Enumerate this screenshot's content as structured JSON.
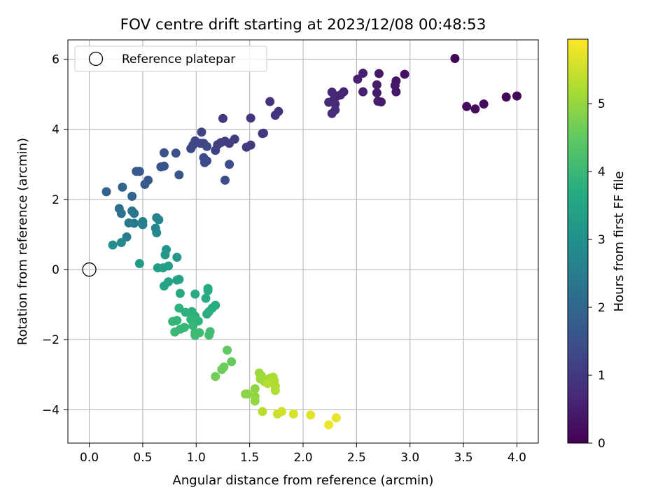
{
  "chart_data": {
    "type": "scatter",
    "title": "FOV centre drift starting at 2023/12/08 00:48:53",
    "xlabel": "Angular distance from reference (arcmin)",
    "ylabel": "Rotation from reference (arcmin)",
    "xlim": [
      -0.2,
      4.2
    ],
    "ylim": [
      -4.95,
      6.55
    ],
    "xticks": [
      0.0,
      0.5,
      1.0,
      1.5,
      2.0,
      2.5,
      3.0,
      3.5,
      4.0
    ],
    "xtick_labels": [
      "0.0",
      "0.5",
      "1.0",
      "1.5",
      "2.0",
      "2.5",
      "3.0",
      "3.5",
      "4.0"
    ],
    "yticks": [
      -4,
      -2,
      0,
      2,
      4,
      6
    ],
    "ytick_labels": [
      "−4",
      "−2",
      "0",
      "2",
      "4",
      "6"
    ],
    "grid": true,
    "legend": {
      "position": "top-left",
      "entries": [
        "Reference platepar"
      ]
    },
    "reference_point": {
      "x": 0.0,
      "y": 0.0
    },
    "colorbar": {
      "label": "Hours from first FF file",
      "colormap": "viridis",
      "range": [
        0,
        5.95
      ],
      "ticks": [
        0,
        1,
        2,
        3,
        4,
        5
      ],
      "tick_labels": [
        "0",
        "1",
        "2",
        "3",
        "4",
        "5"
      ]
    },
    "series": [
      {
        "color_by": "hours",
        "points": [
          [
            3.42,
            6.02,
            0.05
          ],
          [
            4.0,
            4.95,
            0.1
          ],
          [
            3.9,
            4.92,
            0.12
          ],
          [
            3.69,
            4.72,
            0.15
          ],
          [
            3.61,
            4.58,
            0.18
          ],
          [
            3.53,
            4.65,
            0.2
          ],
          [
            2.95,
            5.57,
            0.3
          ],
          [
            2.87,
            5.38,
            0.33
          ],
          [
            2.86,
            5.25,
            0.35
          ],
          [
            2.87,
            5.07,
            0.38
          ],
          [
            2.71,
            5.59,
            0.4
          ],
          [
            2.69,
            5.27,
            0.42
          ],
          [
            2.69,
            5.04,
            0.44
          ],
          [
            2.7,
            4.8,
            0.47
          ],
          [
            2.73,
            4.78,
            0.49
          ],
          [
            2.56,
            5.6,
            0.52
          ],
          [
            2.51,
            5.43,
            0.54
          ],
          [
            2.56,
            5.07,
            0.56
          ],
          [
            2.38,
            5.07,
            0.6
          ],
          [
            2.32,
            4.95,
            0.62
          ],
          [
            2.35,
            4.98,
            0.64
          ],
          [
            2.27,
            5.06,
            0.66
          ],
          [
            2.29,
            4.86,
            0.68
          ],
          [
            2.24,
            4.77,
            0.7
          ],
          [
            2.3,
            4.72,
            0.72
          ],
          [
            2.3,
            4.55,
            0.74
          ],
          [
            2.27,
            4.45,
            0.76
          ],
          [
            1.69,
            4.79,
            0.85
          ],
          [
            1.77,
            4.51,
            0.88
          ],
          [
            1.74,
            4.4,
            0.9
          ],
          [
            1.51,
            4.32,
            0.93
          ],
          [
            1.63,
            3.89,
            0.96
          ],
          [
            1.62,
            3.88,
            0.98
          ],
          [
            1.25,
            4.31,
            1.0
          ],
          [
            1.51,
            3.55,
            1.02
          ],
          [
            1.47,
            3.49,
            1.04
          ],
          [
            1.36,
            3.72,
            1.06
          ],
          [
            1.31,
            3.6,
            1.08
          ],
          [
            1.27,
            3.66,
            1.1
          ],
          [
            1.23,
            3.62,
            1.12
          ],
          [
            1.2,
            3.56,
            1.14
          ],
          [
            1.18,
            3.4,
            1.16
          ],
          [
            1.05,
            3.92,
            1.2
          ],
          [
            1.04,
            3.6,
            1.22
          ],
          [
            1.07,
            3.6,
            1.24
          ],
          [
            0.99,
            3.67,
            1.26
          ],
          [
            0.97,
            3.55,
            1.28
          ],
          [
            0.95,
            3.45,
            1.3
          ],
          [
            1.1,
            3.51,
            1.32
          ],
          [
            1.07,
            3.19,
            1.34
          ],
          [
            1.08,
            3.05,
            1.36
          ],
          [
            1.1,
            3.1,
            1.38
          ],
          [
            1.31,
            3.0,
            1.4
          ],
          [
            1.27,
            2.55,
            1.43
          ],
          [
            0.81,
            3.32,
            1.5
          ],
          [
            0.7,
            3.33,
            1.53
          ],
          [
            0.7,
            2.95,
            1.56
          ],
          [
            0.67,
            2.93,
            1.58
          ],
          [
            0.84,
            2.7,
            1.6
          ],
          [
            0.55,
            2.55,
            1.65
          ],
          [
            0.52,
            2.43,
            1.68
          ],
          [
            0.44,
            2.8,
            1.7
          ],
          [
            0.47,
            2.8,
            1.72
          ],
          [
            0.16,
            2.22,
            1.9
          ],
          [
            0.31,
            2.35,
            1.92
          ],
          [
            0.4,
            2.09,
            1.95
          ],
          [
            0.28,
            1.74,
            2.2
          ],
          [
            0.3,
            1.6,
            2.25
          ],
          [
            0.4,
            1.67,
            2.3
          ],
          [
            0.42,
            1.6,
            2.35
          ],
          [
            0.37,
            1.33,
            2.4
          ],
          [
            0.42,
            1.32,
            2.45
          ],
          [
            0.35,
            0.93,
            2.5
          ],
          [
            0.5,
            1.37,
            2.55
          ],
          [
            0.5,
            1.28,
            2.6
          ],
          [
            0.63,
            1.48,
            2.65
          ],
          [
            0.65,
            1.42,
            2.7
          ],
          [
            0.62,
            1.18,
            2.75
          ],
          [
            0.63,
            1.05,
            2.8
          ],
          [
            0.3,
            0.77,
            2.85
          ],
          [
            0.22,
            0.7,
            2.9
          ],
          [
            0.72,
            0.57,
            3.1
          ],
          [
            0.71,
            0.42,
            3.15
          ],
          [
            0.82,
            0.35,
            3.2
          ],
          [
            0.47,
            0.17,
            3.25
          ],
          [
            0.64,
            0.05,
            3.3
          ],
          [
            0.69,
            0.05,
            3.32
          ],
          [
            0.74,
            0.1,
            3.35
          ],
          [
            0.82,
            -0.3,
            3.4
          ],
          [
            0.84,
            -0.28,
            3.42
          ],
          [
            0.74,
            -0.35,
            3.45
          ],
          [
            0.7,
            -0.47,
            3.5
          ],
          [
            0.85,
            -0.68,
            3.6
          ],
          [
            1.11,
            -0.54,
            3.62
          ],
          [
            1.11,
            -0.6,
            3.64
          ],
          [
            1.09,
            -0.82,
            3.66
          ],
          [
            0.99,
            -0.7,
            3.68
          ],
          [
            1.18,
            -1.02,
            3.7
          ],
          [
            1.15,
            -1.1,
            3.72
          ],
          [
            1.12,
            -1.2,
            3.74
          ],
          [
            1.1,
            -1.27,
            3.76
          ],
          [
            0.96,
            -1.2,
            3.78
          ],
          [
            0.9,
            -1.22,
            3.8
          ],
          [
            0.84,
            -1.1,
            3.82
          ],
          [
            0.99,
            -1.33,
            3.84
          ],
          [
            1.02,
            -1.47,
            3.86
          ],
          [
            0.95,
            -1.42,
            3.88
          ],
          [
            0.82,
            -1.45,
            3.9
          ],
          [
            0.78,
            -1.48,
            3.92
          ],
          [
            0.97,
            -1.6,
            3.94
          ],
          [
            0.89,
            -1.65,
            3.96
          ],
          [
            0.85,
            -1.7,
            3.98
          ],
          [
            0.8,
            -1.78,
            4.0
          ],
          [
            0.99,
            -1.8,
            4.02
          ],
          [
            1.03,
            -1.8,
            4.04
          ],
          [
            0.99,
            -1.88,
            4.06
          ],
          [
            1.13,
            -1.77,
            4.1
          ],
          [
            1.12,
            -1.87,
            4.12
          ],
          [
            1.29,
            -2.3,
            4.5
          ],
          [
            1.33,
            -2.63,
            4.55
          ],
          [
            1.26,
            -2.78,
            4.6
          ],
          [
            1.24,
            -2.85,
            4.62
          ],
          [
            1.18,
            -3.05,
            4.65
          ],
          [
            1.46,
            -3.55,
            4.9
          ],
          [
            1.48,
            -3.55,
            4.92
          ],
          [
            1.55,
            -3.4,
            4.95
          ],
          [
            1.55,
            -3.62,
            4.97
          ],
          [
            1.55,
            -3.75,
            4.99
          ],
          [
            1.59,
            -2.95,
            5.05
          ],
          [
            1.61,
            -3.03,
            5.08
          ],
          [
            1.6,
            -3.12,
            5.1
          ],
          [
            1.64,
            -3.2,
            5.15
          ],
          [
            1.69,
            -3.1,
            5.18
          ],
          [
            1.72,
            -3.07,
            5.2
          ],
          [
            1.73,
            -3.17,
            5.22
          ],
          [
            1.74,
            -3.33,
            5.24
          ],
          [
            1.74,
            -3.45,
            5.26
          ],
          [
            1.67,
            -3.25,
            5.28
          ],
          [
            1.62,
            -4.05,
            5.35
          ],
          [
            1.76,
            -4.12,
            5.5
          ],
          [
            1.8,
            -4.05,
            5.55
          ],
          [
            1.91,
            -4.12,
            5.6
          ],
          [
            2.07,
            -4.15,
            5.7
          ],
          [
            2.31,
            -4.23,
            5.75
          ],
          [
            2.24,
            -4.43,
            5.8
          ]
        ]
      }
    ]
  }
}
